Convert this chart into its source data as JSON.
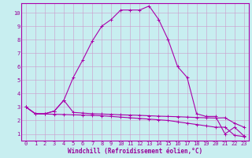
{
  "xlabel": "Windchill (Refroidissement éolien,°C)",
  "bg_color": "#c8eef0",
  "line_color": "#aa00aa",
  "xlim": [
    -0.5,
    23.5
  ],
  "ylim": [
    0.5,
    10.7
  ],
  "xticks": [
    0,
    1,
    2,
    3,
    4,
    5,
    6,
    7,
    8,
    9,
    10,
    11,
    12,
    13,
    14,
    15,
    16,
    17,
    18,
    19,
    20,
    21,
    22,
    23
  ],
  "yticks": [
    1,
    2,
    3,
    4,
    5,
    6,
    7,
    8,
    9,
    10
  ],
  "line1_x": [
    0,
    1,
    2,
    3,
    4,
    5,
    6,
    7,
    8,
    9,
    10,
    11,
    12,
    13,
    14,
    15,
    16,
    17,
    18,
    19,
    20,
    21,
    22,
    23
  ],
  "line1_y": [
    3.0,
    2.5,
    2.5,
    2.7,
    3.5,
    2.6,
    2.55,
    2.5,
    2.48,
    2.45,
    2.42,
    2.4,
    2.38,
    2.35,
    2.32,
    2.3,
    2.28,
    2.25,
    2.22,
    2.2,
    2.18,
    2.2,
    1.8,
    1.5
  ],
  "line2_x": [
    0,
    1,
    2,
    3,
    4,
    5,
    6,
    7,
    8,
    9,
    10,
    11,
    12,
    13,
    14,
    15,
    16,
    17,
    18,
    19,
    20,
    21,
    22,
    23
  ],
  "line2_y": [
    3.0,
    2.5,
    2.48,
    2.46,
    2.44,
    2.42,
    2.4,
    2.38,
    2.35,
    2.3,
    2.25,
    2.2,
    2.15,
    2.1,
    2.05,
    2.0,
    1.9,
    1.8,
    1.7,
    1.6,
    1.5,
    1.5,
    0.9,
    0.8
  ],
  "line3_x": [
    0,
    1,
    2,
    3,
    4,
    5,
    6,
    7,
    8,
    9,
    10,
    11,
    12,
    13,
    14,
    15,
    16,
    17,
    18,
    19,
    20,
    21,
    22,
    23
  ],
  "line3_y": [
    3.0,
    2.5,
    2.5,
    2.7,
    3.5,
    5.2,
    6.5,
    7.9,
    9.0,
    9.5,
    10.2,
    10.2,
    10.2,
    10.5,
    9.5,
    8.0,
    6.0,
    5.2,
    2.5,
    2.3,
    2.3,
    1.0,
    1.5,
    0.85
  ],
  "grid_color": "#cc99cc",
  "font_color": "#990099",
  "font_size": 5.0,
  "xlabel_size": 5.5,
  "lw": 0.8,
  "ms": 3.0
}
